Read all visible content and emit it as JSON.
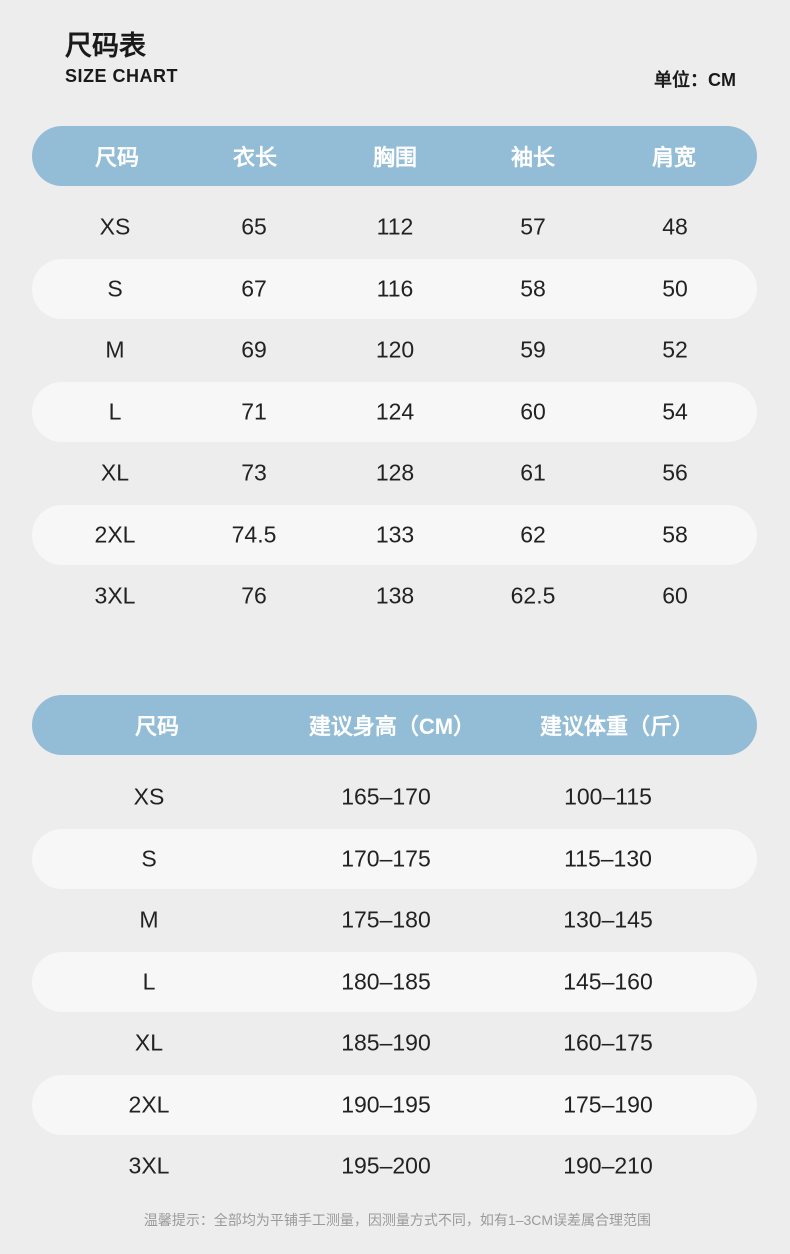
{
  "header": {
    "title": "尺码表",
    "subtitle": "SIZE CHART",
    "unit": "单位：CM"
  },
  "tables": [
    {
      "columns": [
        "尺码",
        "衣长",
        "胸围",
        "袖长",
        "肩宽"
      ],
      "rows": [
        [
          "XS",
          65,
          112,
          57,
          48
        ],
        [
          "S",
          67,
          116,
          58,
          50
        ],
        [
          "M",
          69,
          120,
          59,
          52
        ],
        [
          "L",
          71,
          124,
          60,
          54
        ],
        [
          "XL",
          73,
          128,
          61,
          56
        ],
        [
          "2XL",
          74.5,
          133,
          62,
          58
        ],
        [
          "3XL",
          76,
          138,
          62.5,
          60
        ]
      ]
    },
    {
      "columns": [
        "尺码",
        "建议身高（CM）",
        "建议体重（斤）"
      ],
      "rows": [
        [
          "XS",
          "165–170",
          "100–115"
        ],
        [
          "S",
          "170–175",
          "115–130"
        ],
        [
          "M",
          "175–180",
          "130–145"
        ],
        [
          "L",
          "180–185",
          "145–160"
        ],
        [
          "XL",
          "185–190",
          "160–175"
        ],
        [
          "2XL",
          "190–195",
          "175–190"
        ],
        [
          "3XL",
          "195–200",
          "190–210"
        ]
      ]
    }
  ],
  "note": "温馨提示：全部均为平铺手工测量，因测量方式不同，如有1–3CM误差属合理范围"
}
